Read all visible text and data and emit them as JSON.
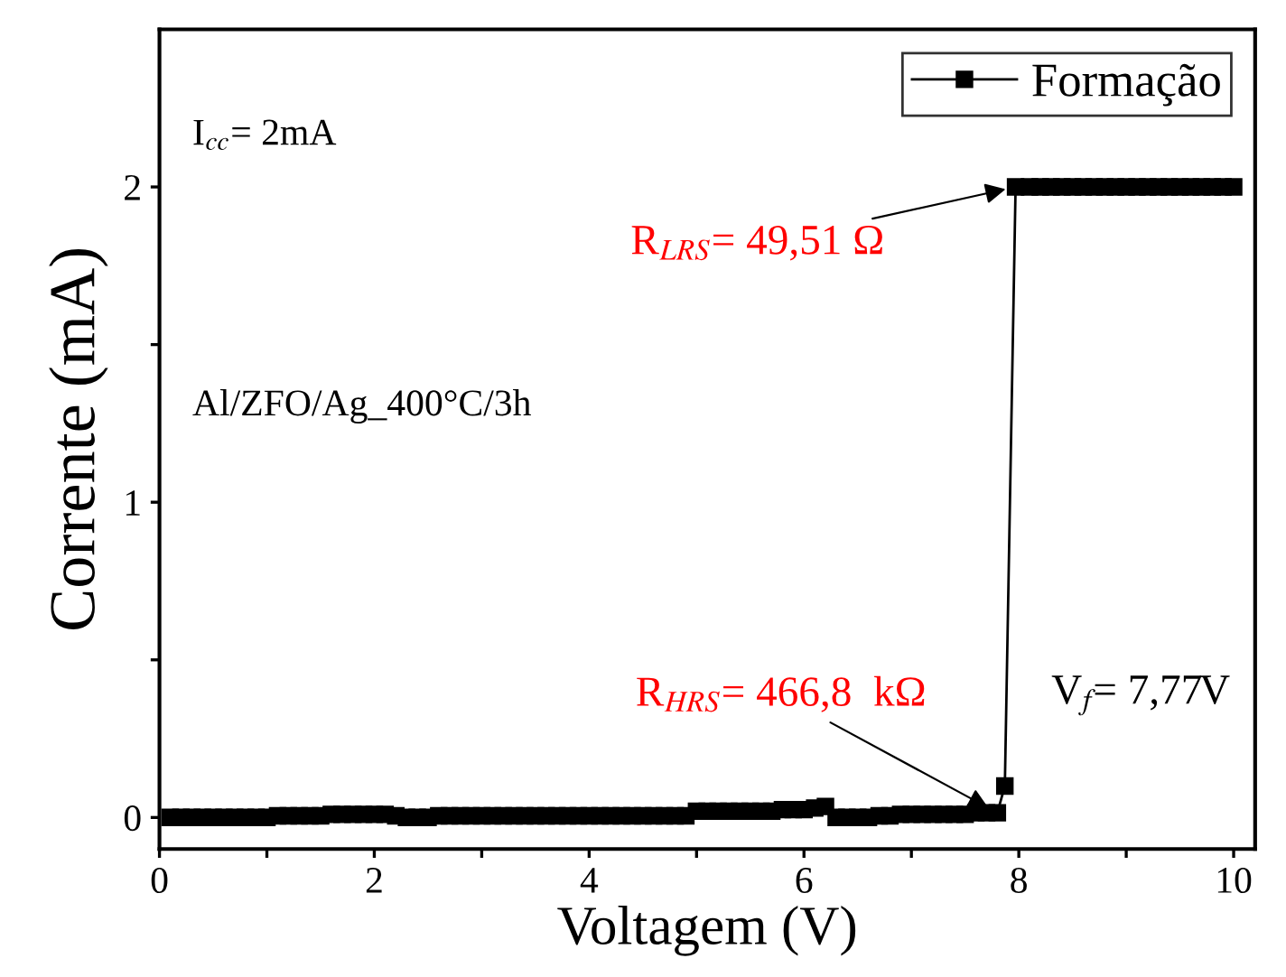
{
  "chart_data": {
    "type": "line",
    "xlabel": "Voltagem (V)",
    "ylabel": "Corrente (mA)",
    "xlim": [
      0,
      10.2
    ],
    "ylim": [
      -0.1,
      2.5
    ],
    "xticks": [
      0,
      {
        "value": 1,
        "label": null
      },
      2,
      {
        "value": 3,
        "label": null
      },
      4,
      {
        "value": 5,
        "label": null
      },
      6,
      {
        "value": 7,
        "label": null
      },
      8,
      {
        "value": 9,
        "label": null
      },
      10
    ],
    "yticks": [
      0,
      {
        "value": 0.5,
        "label": null
      },
      1,
      {
        "value": 1.5,
        "label": null
      },
      2
    ],
    "marker": "square",
    "line_style": "solid",
    "grid": false,
    "legend": "top right",
    "series": [
      {
        "name": "Formação",
        "color": "#000000",
        "x": [
          0.1,
          0.2,
          0.3,
          0.4,
          0.5,
          0.6,
          0.7,
          0.8,
          0.9,
          1.0,
          1.1,
          1.2,
          1.3,
          1.4,
          1.5,
          1.6,
          1.7,
          1.8,
          1.9,
          2.0,
          2.1,
          2.2,
          2.3,
          2.4,
          2.5,
          2.6,
          2.7,
          2.8,
          2.9,
          3.0,
          3.1,
          3.2,
          3.3,
          3.4,
          3.5,
          3.6,
          3.7,
          3.8,
          3.9,
          4.0,
          4.1,
          4.2,
          4.3,
          4.4,
          4.5,
          4.6,
          4.7,
          4.8,
          4.9,
          5.0,
          5.1,
          5.2,
          5.3,
          5.4,
          5.5,
          5.6,
          5.7,
          5.8,
          5.9,
          6.0,
          6.1,
          6.2,
          6.3,
          6.4,
          6.5,
          6.6,
          6.7,
          6.8,
          6.9,
          7.0,
          7.1,
          7.2,
          7.3,
          7.4,
          7.5,
          7.6,
          7.7,
          7.8,
          7.87,
          7.97,
          8.1,
          8.2,
          8.3,
          8.4,
          8.5,
          8.6,
          8.7,
          8.8,
          8.9,
          9.0,
          9.1,
          9.2,
          9.3,
          9.4,
          9.5,
          9.6,
          9.7,
          9.8,
          9.9,
          10.0
        ],
        "values": [
          0,
          0,
          0,
          0,
          0,
          0,
          0,
          0,
          0,
          0,
          0.005,
          0.005,
          0.005,
          0.005,
          0.005,
          0.01,
          0.01,
          0.01,
          0.01,
          0.01,
          0.01,
          0.005,
          0,
          0,
          0,
          0.005,
          0.005,
          0.005,
          0.005,
          0.005,
          0.005,
          0.005,
          0.005,
          0.005,
          0.005,
          0.005,
          0.005,
          0.005,
          0.005,
          0.005,
          0.005,
          0.005,
          0.005,
          0.005,
          0.005,
          0.005,
          0.005,
          0.005,
          0.005,
          0.02,
          0.02,
          0.02,
          0.02,
          0.02,
          0.02,
          0.02,
          0.02,
          0.025,
          0.025,
          0.025,
          0.03,
          0.035,
          0,
          0,
          0,
          0,
          0.005,
          0.005,
          0.01,
          0.01,
          0.01,
          0.01,
          0.01,
          0.01,
          0.01,
          0.015,
          0.015,
          0.015,
          0.1,
          2.0,
          2.0,
          2.0,
          2.0,
          2.0,
          2.0,
          2.0,
          2.0,
          2.0,
          2.0,
          2.0,
          2.0,
          2.0,
          2.0,
          2.0,
          2.0,
          2.0,
          2.0,
          2.0,
          2.0,
          2.0
        ]
      }
    ],
    "annotations": [
      "I$_{cc}$= 2mA",
      "Al/ZFO/Ag_400°C/3h",
      {
        "text": "R$_{LRS}$= 49,51 Ω",
        "x": 7.97,
        "y": 2.0
      },
      {
        "text": "R$_{HRS}$= 466,8  kΩ",
        "x": 7.8,
        "y": 0.015
      },
      "V$_{f}$= 7,77V"
    ]
  }
}
